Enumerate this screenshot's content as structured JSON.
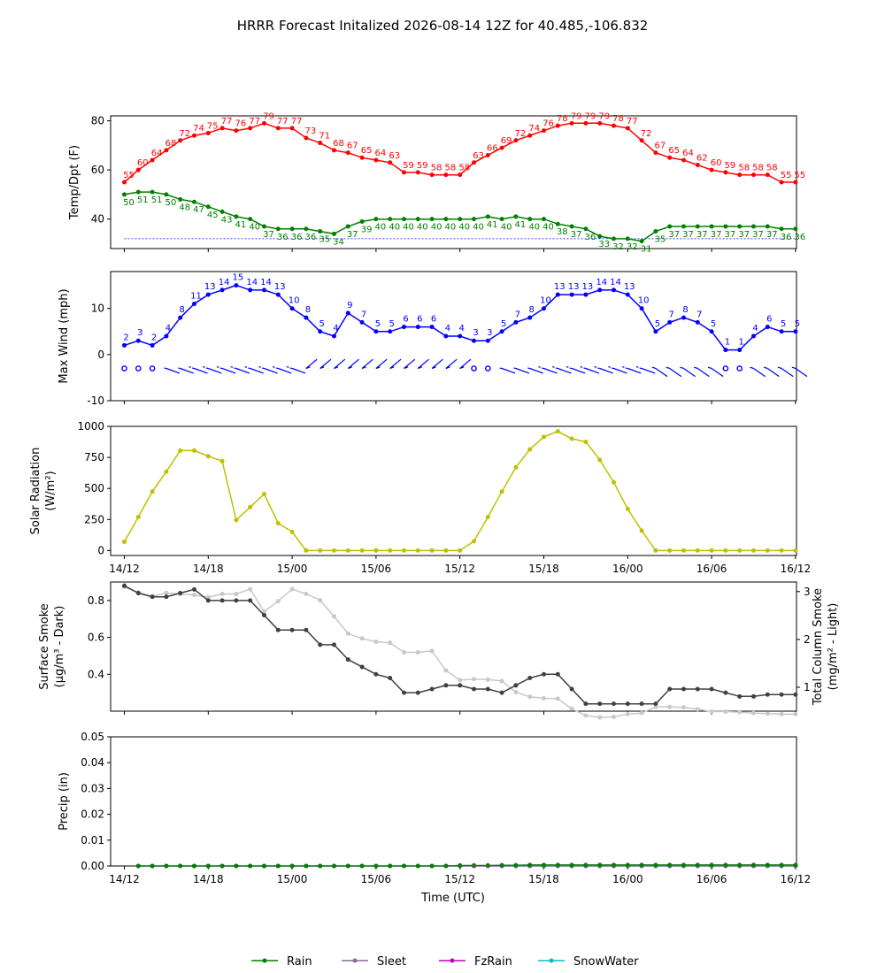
{
  "title": "HRRR Forecast Initalized 2026-08-14 12Z for 40.485,-106.832",
  "x_tick_labels": [
    "14/12",
    "14/18",
    "15/00",
    "15/06",
    "15/12",
    "15/18",
    "16/00",
    "16/06",
    "16/12"
  ],
  "x_axis_label": "Time (UTC)",
  "colors": {
    "temp": "#ff0000",
    "dewpoint": "#008000",
    "wind": "#0000ff",
    "solar": "#bfbf00",
    "smoke_surface": "#404040",
    "smoke_column": "#c8c8c8",
    "rain": "#008000",
    "sleet": "#8c6aa0",
    "fzrain": "#c000c0",
    "snowwater": "#00bfbf"
  },
  "chart_data": [
    {
      "type": "line",
      "name": "temperature-dewpoint",
      "ylabel": "Temp/Dpt (F)",
      "x_hours": [
        0,
        1,
        2,
        3,
        4,
        5,
        6,
        7,
        8,
        9,
        10,
        11,
        12,
        13,
        14,
        15,
        16,
        17,
        18,
        19,
        20,
        21,
        22,
        23,
        24,
        25,
        26,
        27,
        28,
        29,
        30,
        31,
        32,
        33,
        34,
        35,
        36,
        37,
        38,
        39,
        40,
        41,
        42,
        43,
        44,
        45,
        46,
        47,
        48
      ],
      "ylim": [
        28,
        82
      ],
      "yticks": [
        40,
        60,
        80
      ],
      "reference_line": 32,
      "series": [
        {
          "key": "temp",
          "values": [
            55,
            60,
            64,
            68,
            72,
            74,
            75,
            77,
            76,
            77,
            79,
            77,
            77,
            73,
            71,
            68,
            67,
            65,
            64,
            63,
            59,
            59,
            58,
            58,
            58,
            63,
            66,
            69,
            72,
            74,
            76,
            78,
            79,
            79,
            79,
            78,
            77,
            72,
            67,
            65,
            64,
            62,
            60,
            59,
            58,
            58,
            58,
            55,
            55
          ]
        },
        {
          "key": "dewpoint",
          "values": [
            50,
            51,
            51,
            50,
            48,
            47,
            45,
            43,
            41,
            40,
            37,
            36,
            36,
            36,
            35,
            34,
            37,
            39,
            40,
            40,
            40,
            40,
            40,
            40,
            40,
            40,
            41,
            40,
            41,
            40,
            40,
            38,
            37,
            36,
            33,
            32,
            32,
            31,
            35,
            37,
            37,
            37,
            37,
            37,
            37,
            37,
            37,
            36,
            36
          ]
        }
      ]
    },
    {
      "type": "line",
      "name": "max-wind",
      "ylabel": "Max Wind (mph)",
      "ylim": [
        -10,
        18
      ],
      "yticks": [
        -10,
        0,
        10
      ],
      "values": [
        2,
        3,
        2,
        4,
        8,
        11,
        13,
        14,
        15,
        14,
        14,
        13,
        10,
        8,
        5,
        4,
        9,
        7,
        5,
        5,
        6,
        6,
        6,
        4,
        4,
        3,
        3,
        5,
        7,
        8,
        10,
        13,
        13,
        13,
        14,
        14,
        13,
        10,
        5,
        7,
        8,
        7,
        5,
        1,
        1,
        4,
        6,
        5,
        5
      ],
      "barbs": "wind direction barbs row at -3 mph"
    },
    {
      "type": "line",
      "name": "solar-radiation",
      "ylabel": "Solar Radiation",
      "ylabel_units": "(W/m²)",
      "ylim": [
        -40,
        1000
      ],
      "yticks": [
        0,
        250,
        500,
        750,
        1000
      ],
      "values": [
        70,
        270,
        475,
        635,
        805,
        805,
        760,
        720,
        245,
        350,
        455,
        220,
        150,
        0,
        0,
        0,
        0,
        0,
        0,
        0,
        0,
        0,
        0,
        0,
        0,
        75,
        270,
        475,
        670,
        815,
        915,
        960,
        900,
        875,
        730,
        550,
        335,
        160,
        0,
        0,
        0,
        0,
        0,
        0,
        0,
        0,
        0,
        0,
        0
      ]
    },
    {
      "type": "line",
      "name": "smoke",
      "ylabel": "Surface Smoke",
      "ylabel_units": "(µg/m³ - Dark)",
      "ylabel_right": "Total Column Smoke",
      "ylabel_right_units": "(mg/m² - Light)",
      "ylim": [
        0.2,
        0.9
      ],
      "yticks": [
        0.4,
        0.6,
        0.8
      ],
      "y2lim": [
        0.5,
        3.2
      ],
      "y2ticks": [
        1,
        2,
        3
      ],
      "series": [
        {
          "key": "smoke_surface",
          "axis": "left",
          "values": [
            0.88,
            0.84,
            0.82,
            0.82,
            0.84,
            0.86,
            0.8,
            0.8,
            0.8,
            0.8,
            0.72,
            0.64,
            0.64,
            0.64,
            0.56,
            0.56,
            0.48,
            0.44,
            0.4,
            0.38,
            0.3,
            0.3,
            0.32,
            0.34,
            0.34,
            0.32,
            0.32,
            0.3,
            0.34,
            0.38,
            0.4,
            0.4,
            0.32,
            0.24,
            0.24,
            0.24,
            0.24,
            0.24,
            0.24,
            0.32,
            0.32,
            0.32,
            0.32,
            0.3,
            0.28,
            0.28,
            0.29,
            0.29,
            0.29
          ]
        },
        {
          "key": "smoke_column",
          "axis": "right",
          "values": [
            3.1,
            2.98,
            2.9,
            2.97,
            2.95,
            2.93,
            2.88,
            2.95,
            2.95,
            3.05,
            2.58,
            2.8,
            3.05,
            2.95,
            2.82,
            2.48,
            2.12,
            2.02,
            1.95,
            1.93,
            1.73,
            1.73,
            1.76,
            1.35,
            1.15,
            1.17,
            1.16,
            1.13,
            0.9,
            0.8,
            0.77,
            0.76,
            0.55,
            0.41,
            0.37,
            0.38,
            0.44,
            0.46,
            0.59,
            0.59,
            0.58,
            0.54,
            0.49,
            0.49,
            0.48,
            0.46,
            0.45,
            0.44,
            0.44
          ]
        }
      ]
    },
    {
      "type": "line",
      "name": "precipitation",
      "ylabel": "Precip (in)",
      "ylim": [
        0,
        0.05
      ],
      "yticks": [
        "0.00",
        "0.01",
        "0.02",
        "0.03",
        "0.04",
        "0.05"
      ],
      "series": [
        {
          "key": "rain",
          "name": "Rain",
          "values": [
            0,
            0,
            0,
            0,
            0,
            0,
            0,
            0,
            0,
            0,
            0,
            0,
            0,
            0,
            0,
            0,
            0,
            0,
            0,
            0,
            0,
            0,
            0,
            0.0002,
            0.0002,
            0.0002,
            0.0003,
            0.0003,
            0.0004,
            0.0004,
            0.0004,
            0.0004,
            0.0004,
            0.0004,
            0.0004,
            0.0004,
            0.0004,
            0.0004,
            0.0004,
            0.0004,
            0.0004,
            0.0004,
            0.0004,
            0.0004,
            0.0004,
            0.0004,
            0.0004,
            0.0004
          ]
        },
        {
          "key": "sleet",
          "name": "Sleet",
          "values": [
            0,
            0,
            0,
            0,
            0,
            0,
            0,
            0,
            0,
            0,
            0,
            0,
            0,
            0,
            0,
            0,
            0,
            0,
            0,
            0,
            0,
            0,
            0,
            0,
            0,
            0,
            0,
            0,
            0,
            0,
            0,
            0,
            0,
            0,
            0,
            0,
            0,
            0,
            0,
            0,
            0,
            0,
            0,
            0,
            0,
            0,
            0,
            0
          ]
        },
        {
          "key": "fzrain",
          "name": "FzRain",
          "values": [
            0,
            0,
            0,
            0,
            0,
            0,
            0,
            0,
            0,
            0,
            0,
            0,
            0,
            0,
            0,
            0,
            0,
            0,
            0,
            0,
            0,
            0,
            0,
            0,
            0,
            0,
            0,
            0,
            0,
            0,
            0,
            0,
            0,
            0,
            0,
            0,
            0,
            0,
            0,
            0,
            0,
            0,
            0,
            0,
            0,
            0,
            0,
            0
          ]
        },
        {
          "key": "snowwater",
          "name": "SnowWater",
          "values": [
            0,
            0,
            0,
            0,
            0,
            0,
            0,
            0,
            0,
            0,
            0,
            0,
            0,
            0,
            0,
            0,
            0,
            0,
            0,
            0,
            0,
            0,
            0,
            0,
            0,
            0,
            0,
            0,
            0,
            0,
            0,
            0,
            0,
            0,
            0,
            0,
            0,
            0,
            0,
            0,
            0,
            0,
            0,
            0,
            0,
            0,
            0,
            0
          ]
        }
      ]
    }
  ]
}
